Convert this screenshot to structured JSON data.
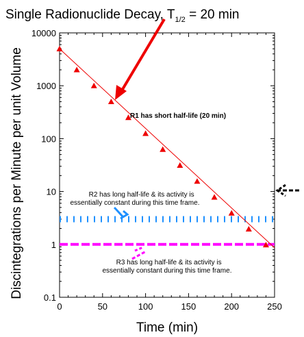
{
  "chart_data": {
    "type": "scatter",
    "title": "Single Radionuclide Decay, T",
    "title_subscript": "1/2",
    "title_suffix": " = 20 min",
    "xlabel": "Time  (min)",
    "ylabel": "Discintegrations per Minute per unit Volume",
    "xlim": [
      0,
      250
    ],
    "ylim": [
      0.1,
      10000
    ],
    "y_scale": "log",
    "x_ticks": [
      "0",
      "50",
      "100",
      "150",
      "200",
      "250"
    ],
    "y_ticks": [
      "0.1",
      "1",
      "10",
      "100",
      "1000",
      "10000"
    ],
    "grid": false,
    "series": [
      {
        "name": "R1",
        "color": "#ee0000",
        "marker": "triangle",
        "x": [
          0,
          20,
          40,
          60,
          80,
          100,
          120,
          140,
          160,
          180,
          200,
          220,
          240
        ],
        "y": [
          5000,
          2000,
          1000,
          500,
          250,
          125,
          62.5,
          31.25,
          15.6,
          7.8,
          3.9,
          1.95,
          0.98
        ]
      },
      {
        "name": "R2",
        "color": "#1e90ff",
        "style": "dotted",
        "x": [
          0,
          250
        ],
        "y": [
          3,
          3
        ]
      },
      {
        "name": "R3",
        "color": "#ff00ff",
        "style": "dashed",
        "x": [
          0,
          250
        ],
        "y": [
          1,
          1
        ]
      }
    ],
    "annotations": [
      {
        "text": "R1 has short half-life (20 min)",
        "bold": true
      },
      {
        "text": "R2 has long half-life & its activity is",
        "line2": "essentially constant during this time frame."
      },
      {
        "text": "R3 has long half-life & its activity is",
        "line2": "essentially constant during this time frame."
      }
    ]
  }
}
